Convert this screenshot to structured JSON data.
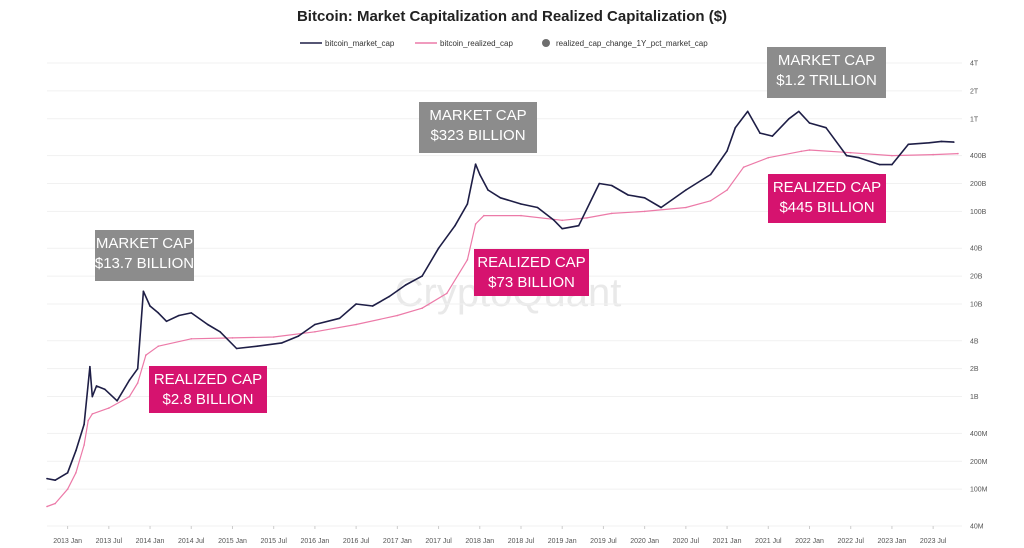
{
  "chart_data": {
    "type": "line",
    "title": "Bitcoin: Market Capitalization and Realized Capitalization ($)",
    "xlabel": "",
    "ylabel": "",
    "y_scale": "log",
    "ylim": [
      40000000,
      4000000000000
    ],
    "legend_position": "top-center",
    "legend": [
      {
        "name": "bitcoin_market_cap",
        "style": "line",
        "color": "#1e1e46"
      },
      {
        "name": "bitcoin_realized_cap",
        "style": "line",
        "color": "#ec7aa8"
      },
      {
        "name": "realized_cap_change_1Y_pct_market_cap",
        "style": "dot",
        "color": "#6e6e6e"
      }
    ],
    "x_ticks": [
      "2013 Jan",
      "2013 Jul",
      "2014 Jan",
      "2014 Jul",
      "2015 Jan",
      "2015 Jul",
      "2016 Jan",
      "2016 Jul",
      "2017 Jan",
      "2017 Jul",
      "2018 Jan",
      "2018 Jul",
      "2019 Jan",
      "2019 Jul",
      "2020 Jan",
      "2020 Jul",
      "2021 Jan",
      "2021 Jul",
      "2022 Jan",
      "2022 Jul",
      "2023 Jan",
      "2023 Jul"
    ],
    "y_ticks": [
      {
        "label": "4T",
        "value": 4000000000000
      },
      {
        "label": "2T",
        "value": 2000000000000
      },
      {
        "label": "1T",
        "value": 1000000000000
      },
      {
        "label": "400B",
        "value": 400000000000
      },
      {
        "label": "200B",
        "value": 200000000000
      },
      {
        "label": "100B",
        "value": 100000000000
      },
      {
        "label": "40B",
        "value": 40000000000
      },
      {
        "label": "20B",
        "value": 20000000000
      },
      {
        "label": "10B",
        "value": 10000000000
      },
      {
        "label": "4B",
        "value": 4000000000
      },
      {
        "label": "2B",
        "value": 2000000000
      },
      {
        "label": "1B",
        "value": 1000000000
      },
      {
        "label": "400M",
        "value": 400000000
      },
      {
        "label": "200M",
        "value": 200000000
      },
      {
        "label": "100M",
        "value": 100000000
      },
      {
        "label": "40M",
        "value": 40000000
      }
    ],
    "series": [
      {
        "name": "bitcoin_market_cap",
        "x": [
          2012.75,
          2012.85,
          2013.0,
          2013.1,
          2013.2,
          2013.27,
          2013.3,
          2013.35,
          2013.45,
          2013.6,
          2013.75,
          2013.85,
          2013.92,
          2014.0,
          2014.1,
          2014.2,
          2014.35,
          2014.5,
          2014.7,
          2014.85,
          2015.05,
          2015.3,
          2015.6,
          2015.8,
          2016.0,
          2016.3,
          2016.5,
          2016.7,
          2016.9,
          2017.1,
          2017.3,
          2017.5,
          2017.7,
          2017.85,
          2017.95,
          2018.0,
          2018.1,
          2018.25,
          2018.5,
          2018.7,
          2018.9,
          2019.0,
          2019.2,
          2019.45,
          2019.6,
          2019.8,
          2020.0,
          2020.2,
          2020.5,
          2020.8,
          2021.0,
          2021.1,
          2021.25,
          2021.4,
          2021.55,
          2021.75,
          2021.87,
          2022.0,
          2022.2,
          2022.45,
          2022.6,
          2022.85,
          2023.0,
          2023.2,
          2023.45,
          2023.6,
          2023.75
        ],
        "values": [
          130000000,
          125000000,
          150000000,
          260000000,
          500000000,
          2100000000,
          1000000000,
          1300000000,
          1200000000,
          900000000,
          1500000000,
          2000000000,
          13700000000,
          9500000000,
          8000000000,
          6500000000,
          7500000000,
          8000000000,
          6000000000,
          5000000000,
          3300000000,
          3500000000,
          3800000000,
          4500000000,
          6000000000,
          7000000000,
          10000000000,
          9500000000,
          12000000000,
          16000000000,
          20000000000,
          40000000000,
          70000000000,
          120000000000,
          323000000000,
          250000000000,
          170000000000,
          140000000000,
          120000000000,
          110000000000,
          80000000000,
          65000000000,
          70000000000,
          200000000000,
          190000000000,
          150000000000,
          140000000000,
          110000000000,
          170000000000,
          250000000000,
          450000000000,
          800000000000,
          1200000000000,
          700000000000,
          650000000000,
          1000000000000,
          1200000000000,
          900000000000,
          800000000000,
          400000000000,
          380000000000,
          320000000000,
          320000000000,
          530000000000,
          550000000000,
          570000000000,
          560000000000
        ]
      },
      {
        "name": "bitcoin_realized_cap",
        "x": [
          2012.75,
          2012.85,
          2013.0,
          2013.1,
          2013.2,
          2013.25,
          2013.3,
          2013.5,
          2013.75,
          2013.85,
          2013.95,
          2014.1,
          2014.5,
          2015.0,
          2015.5,
          2016.0,
          2016.5,
          2017.0,
          2017.3,
          2017.6,
          2017.85,
          2017.95,
          2018.05,
          2018.5,
          2019.0,
          2019.3,
          2019.6,
          2020.0,
          2020.5,
          2020.8,
          2021.0,
          2021.2,
          2021.5,
          2021.9,
          2022.0,
          2022.5,
          2023.0,
          2023.5,
          2023.8
        ],
        "values": [
          65000000,
          70000000,
          100000000,
          150000000,
          300000000,
          550000000,
          650000000,
          750000000,
          1000000000,
          1400000000,
          2800000000,
          3500000000,
          4200000000,
          4300000000,
          4400000000,
          5000000000,
          6000000000,
          7500000000,
          9000000000,
          13000000000,
          30000000000,
          73000000000,
          90000000000,
          90000000000,
          80000000000,
          85000000000,
          95000000000,
          100000000000,
          110000000000,
          130000000000,
          170000000000,
          300000000000,
          380000000000,
          445000000000,
          460000000000,
          430000000000,
          400000000000,
          410000000000,
          420000000000
        ]
      }
    ],
    "annotations": [
      {
        "lines": [
          "MARKET CAP",
          "$13.7 BILLION"
        ],
        "color": "#8c8c8c"
      },
      {
        "lines": [
          "REALIZED CAP",
          "$2.8 BILLION"
        ],
        "color": "#d6136f"
      },
      {
        "lines": [
          "MARKET CAP",
          "$323 BILLION"
        ],
        "color": "#8c8c8c"
      },
      {
        "lines": [
          "REALIZED CAP",
          "$73 BILLION"
        ],
        "color": "#d6136f"
      },
      {
        "lines": [
          "MARKET CAP",
          "$1.2 TRILLION"
        ],
        "color": "#8c8c8c"
      },
      {
        "lines": [
          "REALIZED CAP",
          "$445 BILLION"
        ],
        "color": "#d6136f"
      }
    ],
    "watermark": "CryptoQuant"
  }
}
